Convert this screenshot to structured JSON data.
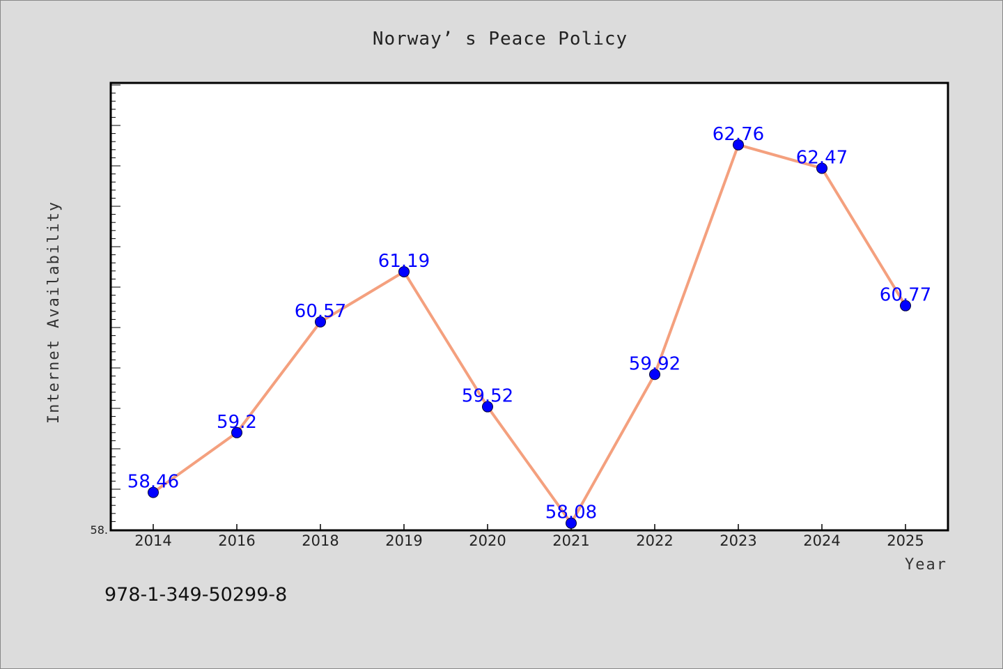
{
  "isbn": "978-1-349-50299-8",
  "chart_data": {
    "type": "line",
    "title": "Norway’ s Peace Policy",
    "xlabel": "Year",
    "ylabel": "Internet Availability",
    "categories": [
      "2014",
      "2016",
      "2018",
      "2019",
      "2020",
      "2021",
      "2022",
      "2023",
      "2024",
      "2025"
    ],
    "values": [
      58.46,
      59.2,
      60.57,
      61.19,
      59.52,
      58.08,
      59.92,
      62.76,
      62.47,
      60.77
    ],
    "data_labels": [
      "58.46",
      "59.2",
      "60.57",
      "61.19",
      "59.52",
      "58.08",
      "59.92",
      "62.76",
      "62.47",
      "60.77"
    ],
    "yticks": [
      {
        "value": 58,
        "label": "58."
      }
    ],
    "ylim": [
      58,
      63.5
    ],
    "minor_tick_step": 0.1,
    "major_tick_step": 0.5,
    "grid": false,
    "line_color": "#f4a07e",
    "marker_color": "#0000ff"
  }
}
